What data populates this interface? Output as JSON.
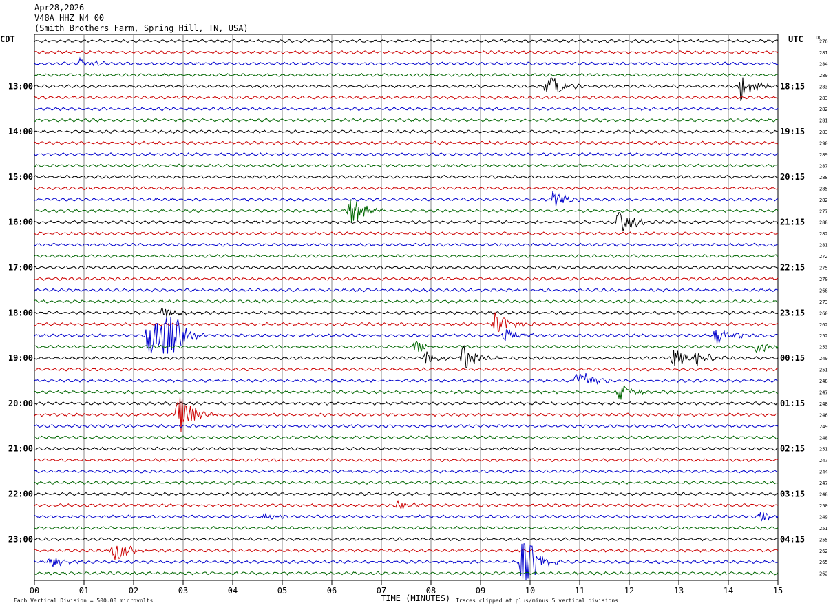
{
  "header": {
    "date": "Apr28,2026",
    "station": "V48A HHZ N4 00",
    "location": "(Smith Brothers Farm, Spring Hill, TN, USA)"
  },
  "labels": {
    "left_tz": "CDT",
    "right_tz": "UTC",
    "dc": "DC",
    "xlabel": "TIME (MINUTES)",
    "scale_note": "Each Vertical Division =  500.00 microvolts",
    "clip_note": "Traces clipped at plus/minus 5 vertical divisions"
  },
  "colors": {
    "trace_cycle": [
      "#000000",
      "#cc0000",
      "#0000cc",
      "#006600"
    ],
    "grid": "#888888",
    "frame": "#000000"
  },
  "chart_data": {
    "type": "line",
    "title": "V48A HHZ N4 00",
    "xlabel": "TIME (MINUTES)",
    "xlim": [
      0,
      15
    ],
    "x_ticks": [
      "00",
      "01",
      "02",
      "03",
      "04",
      "05",
      "06",
      "07",
      "08",
      "09",
      "10",
      "11",
      "12",
      "13",
      "14",
      "15"
    ],
    "n_traces": 48,
    "minutes_per_trace": 15,
    "left_hour_labels": [
      {
        "trace": 4,
        "label": "13:00"
      },
      {
        "trace": 8,
        "label": "14:00"
      },
      {
        "trace": 12,
        "label": "15:00"
      },
      {
        "trace": 16,
        "label": "16:00"
      },
      {
        "trace": 20,
        "label": "17:00"
      },
      {
        "trace": 24,
        "label": "18:00"
      },
      {
        "trace": 28,
        "label": "19:00"
      },
      {
        "trace": 32,
        "label": "20:00"
      },
      {
        "trace": 36,
        "label": "21:00"
      },
      {
        "trace": 40,
        "label": "22:00"
      },
      {
        "trace": 44,
        "label": "23:00"
      }
    ],
    "right_hour_labels": [
      {
        "trace": 4,
        "label": "18:15"
      },
      {
        "trace": 8,
        "label": "19:15"
      },
      {
        "trace": 12,
        "label": "20:15"
      },
      {
        "trace": 16,
        "label": "21:15"
      },
      {
        "trace": 20,
        "label": "22:15"
      },
      {
        "trace": 24,
        "label": "23:15"
      },
      {
        "trace": 28,
        "label": "00:15"
      },
      {
        "trace": 32,
        "label": "01:15"
      },
      {
        "trace": 36,
        "label": "02:15"
      },
      {
        "trace": 40,
        "label": "03:15"
      },
      {
        "trace": 44,
        "label": "04:15"
      }
    ],
    "dc_offsets": [
      276,
      281,
      284,
      289,
      283,
      283,
      282,
      281,
      283,
      290,
      289,
      287,
      288,
      285,
      282,
      277,
      288,
      282,
      281,
      272,
      275,
      270,
      268,
      273,
      260,
      262,
      252,
      253,
      249,
      251,
      248,
      247,
      248,
      246,
      249,
      248,
      251,
      247,
      244,
      247,
      248,
      250,
      249,
      251,
      255,
      262,
      265,
      262
    ],
    "events": [
      {
        "trace": 2,
        "minute": 0.9,
        "amp": 0.5
      },
      {
        "trace": 4,
        "minute": 10.35,
        "amp": 1.2
      },
      {
        "trace": 4,
        "minute": 14.25,
        "amp": 1.2
      },
      {
        "trace": 14,
        "minute": 10.45,
        "amp": 0.8
      },
      {
        "trace": 15,
        "minute": 6.35,
        "amp": 1.6
      },
      {
        "trace": 16,
        "minute": 11.8,
        "amp": 1.3
      },
      {
        "trace": 24,
        "minute": 2.6,
        "amp": 0.6
      },
      {
        "trace": 25,
        "minute": 9.3,
        "amp": 1.2
      },
      {
        "trace": 26,
        "minute": 2.3,
        "amp": 2.5
      },
      {
        "trace": 26,
        "minute": 2.65,
        "amp": 3.5
      },
      {
        "trace": 26,
        "minute": 9.5,
        "amp": 0.7
      },
      {
        "trace": 26,
        "minute": 13.75,
        "amp": 0.9
      },
      {
        "trace": 27,
        "minute": 7.7,
        "amp": 0.7
      },
      {
        "trace": 27,
        "minute": 14.6,
        "amp": 0.9
      },
      {
        "trace": 28,
        "minute": 7.9,
        "amp": 0.6
      },
      {
        "trace": 28,
        "minute": 8.65,
        "amp": 1.2
      },
      {
        "trace": 28,
        "minute": 12.9,
        "amp": 0.9
      },
      {
        "trace": 28,
        "minute": 13.35,
        "amp": 0.9
      },
      {
        "trace": 30,
        "minute": 10.95,
        "amp": 1.5
      },
      {
        "trace": 31,
        "minute": 11.8,
        "amp": 0.8
      },
      {
        "trace": 33,
        "minute": 2.9,
        "amp": 2.2
      },
      {
        "trace": 41,
        "minute": 7.35,
        "amp": 0.4
      },
      {
        "trace": 42,
        "minute": 4.65,
        "amp": 0.5
      },
      {
        "trace": 42,
        "minute": 14.65,
        "amp": 0.5
      },
      {
        "trace": 45,
        "minute": 1.6,
        "amp": 1.1
      },
      {
        "trace": 46,
        "minute": 0.3,
        "amp": 0.6
      },
      {
        "trace": 46,
        "minute": 9.85,
        "amp": 3.2
      }
    ]
  }
}
